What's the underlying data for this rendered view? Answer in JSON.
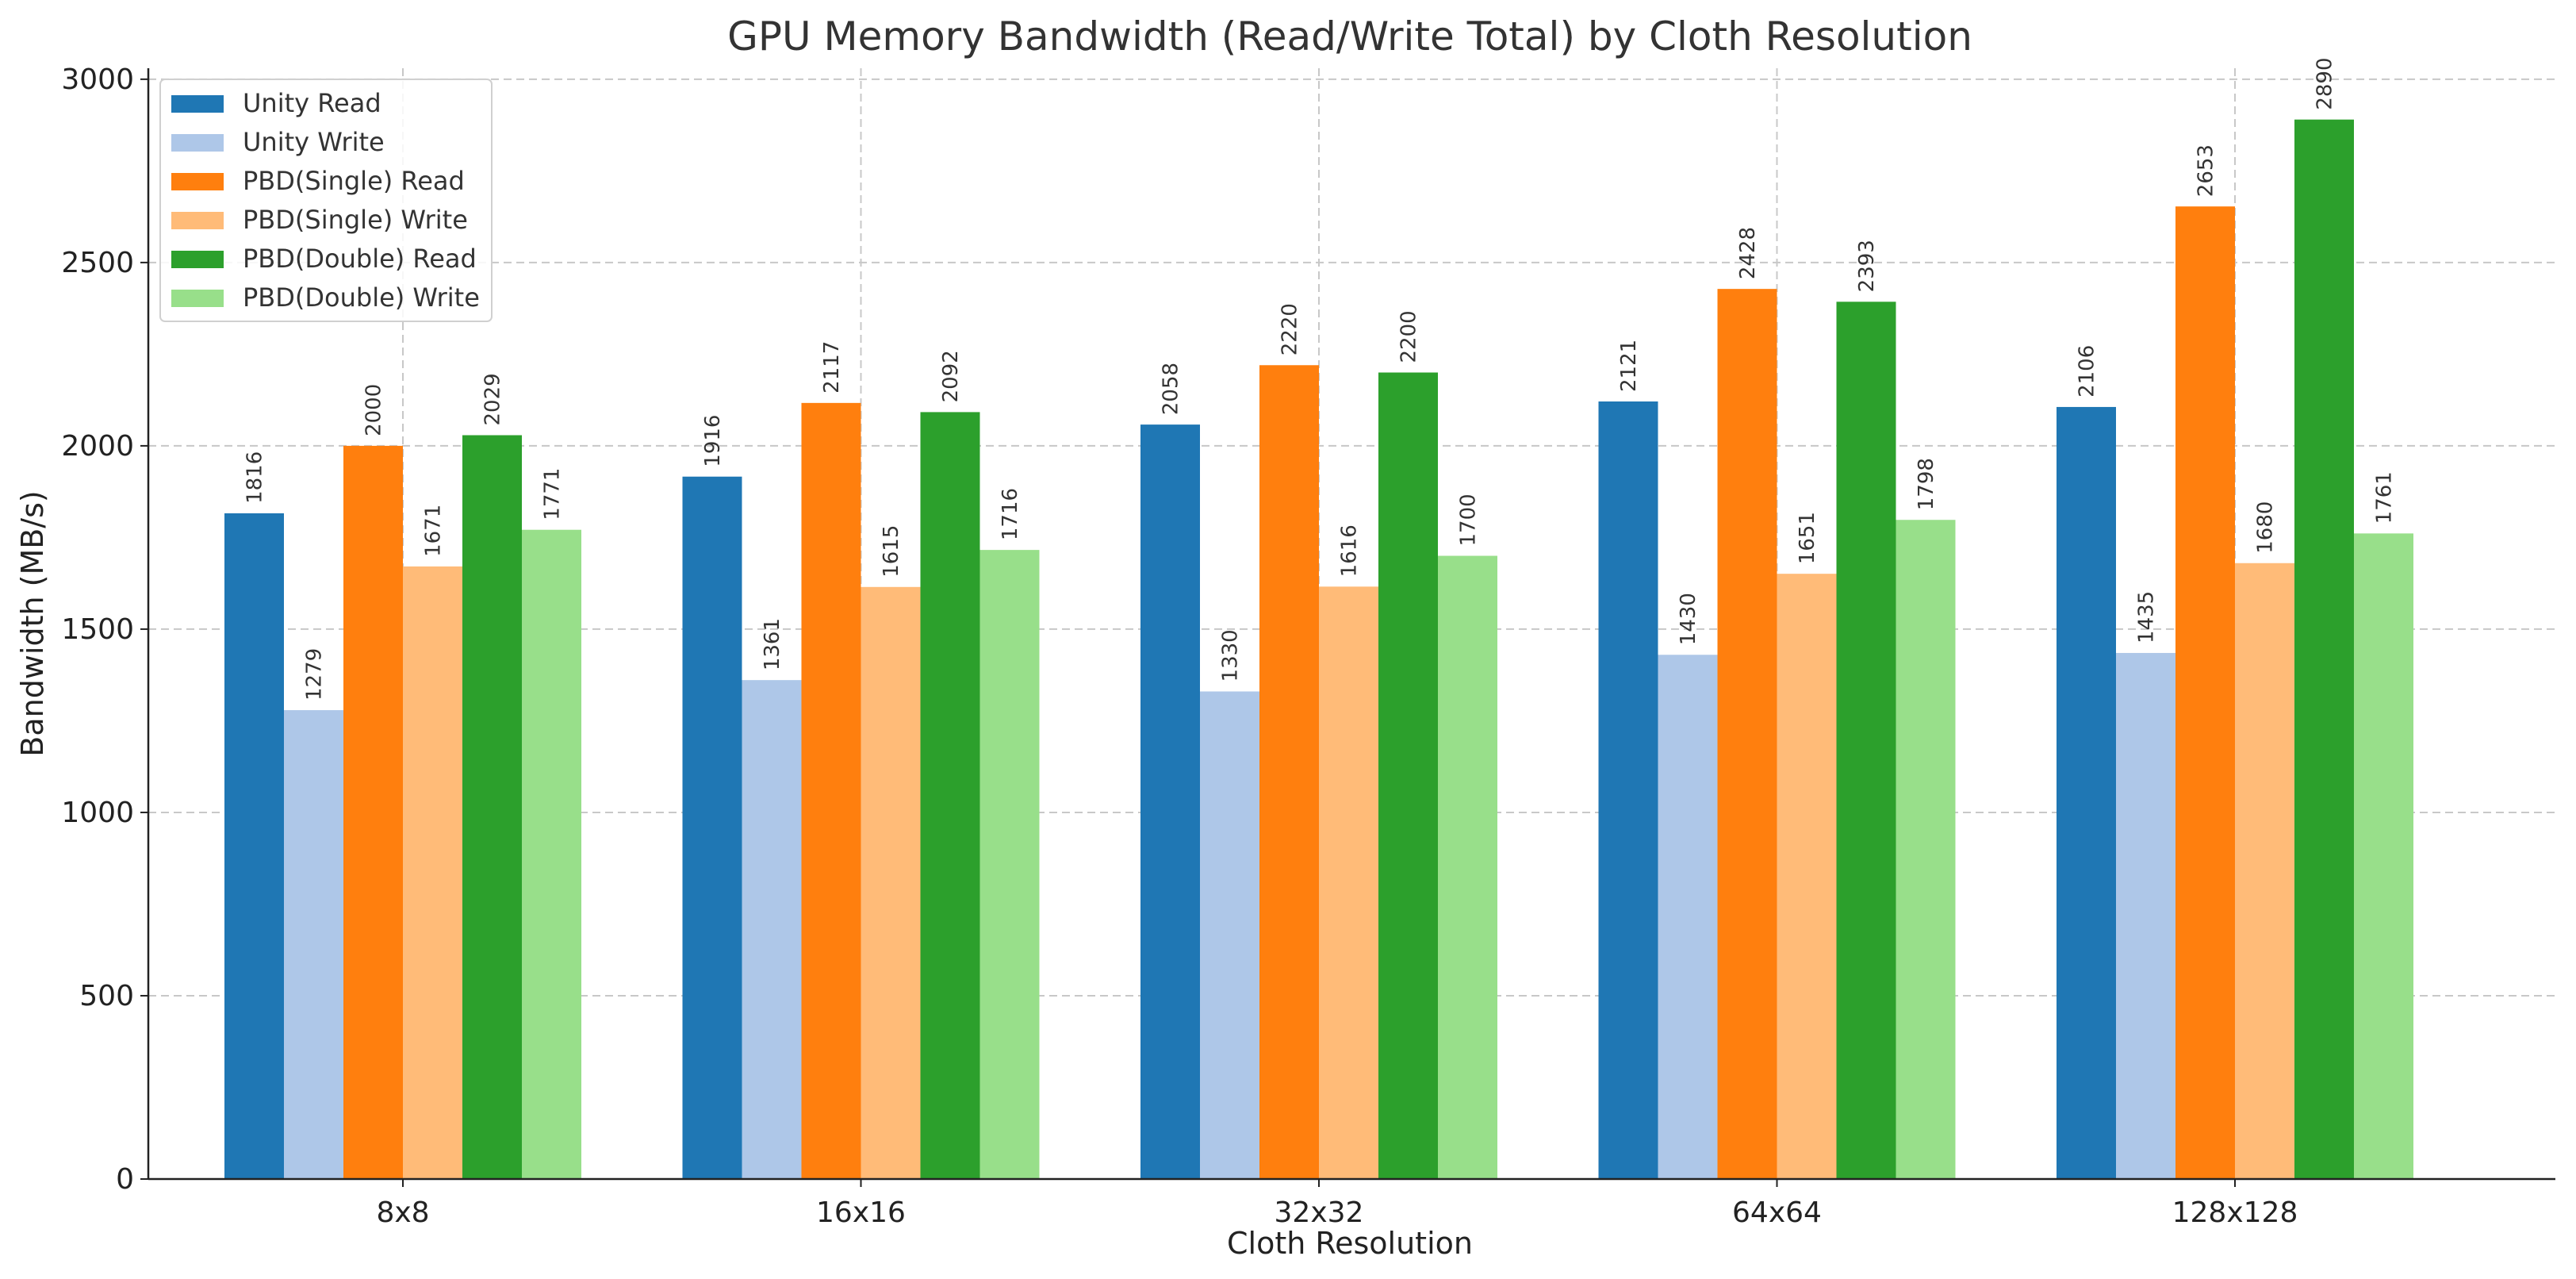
{
  "chart_data": {
    "type": "bar",
    "title": "GPU Memory Bandwidth (Read/Write Total) by Cloth Resolution",
    "xlabel": "Cloth Resolution",
    "ylabel": "Bandwidth (MB/s)",
    "categories": [
      "8x8",
      "16x16",
      "32x32",
      "64x64",
      "128x128"
    ],
    "ylim": [
      0,
      3030
    ],
    "yticks": [
      0,
      500,
      1000,
      1500,
      2000,
      2500,
      3000
    ],
    "grid": true,
    "legend_position": "top-left",
    "series": [
      {
        "name": "Unity Read",
        "color": "#1f77b4",
        "values": [
          1816,
          1916,
          2058,
          2121,
          2106
        ]
      },
      {
        "name": "Unity Write",
        "color": "#aec7e8",
        "values": [
          1279,
          1361,
          1330,
          1430,
          1435
        ]
      },
      {
        "name": "PBD(Single) Read",
        "color": "#ff7f0e",
        "values": [
          2000,
          2117,
          2220,
          2428,
          2653
        ]
      },
      {
        "name": "PBD(Single) Write",
        "color": "#ffbb78",
        "values": [
          1671,
          1615,
          1616,
          1651,
          1680
        ]
      },
      {
        "name": "PBD(Double) Read",
        "color": "#2ca02c",
        "values": [
          2029,
          2092,
          2200,
          2393,
          2890
        ]
      },
      {
        "name": "PBD(Double) Write",
        "color": "#98df8a",
        "values": [
          1771,
          1716,
          1700,
          1798,
          1761
        ]
      }
    ]
  }
}
